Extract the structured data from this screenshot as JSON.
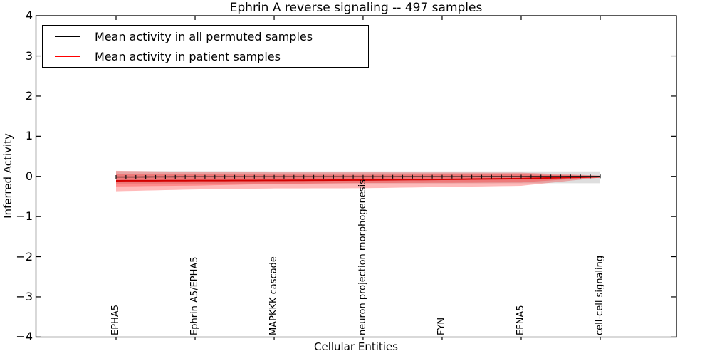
{
  "legend": {
    "items": [
      {
        "label": "Mean activity in all permuted samples",
        "color": "#000000"
      },
      {
        "label": "Mean activity in patient samples",
        "color": "#ff0000"
      }
    ]
  },
  "chart_data": {
    "type": "line",
    "title": "Ephrin A  reverse signaling -- 497 samples",
    "xlabel": "Cellular Entities",
    "ylabel": "Inferred Activity",
    "ylim": [
      -4,
      4
    ],
    "grid": false,
    "legend_position": "upper left",
    "ytick_labels": [
      "4",
      "3",
      "2",
      "1",
      "0",
      "−1",
      "−2",
      "−3",
      "−4"
    ],
    "ytick_values": [
      4,
      3,
      2,
      1,
      0,
      -1,
      -2,
      -3,
      -4
    ],
    "n_points": 50,
    "key_indices": [
      0,
      8,
      16,
      25,
      33,
      41,
      49
    ],
    "x_tick_labels": [
      "EPHA5",
      "Ephrin A5/EPHA5",
      "MAPKKK cascade",
      "neuron projection morphogenesis",
      "FYN",
      "EFNA5",
      "cell-cell signaling"
    ],
    "series": [
      {
        "name": "Mean activity in all permuted samples",
        "color": "#111111",
        "line_width": 1.4,
        "marker": "|",
        "key_values": [
          -0.015,
          -0.01,
          -0.01,
          -0.01,
          -0.008,
          -0.005,
          0.0
        ]
      },
      {
        "name": "Mean activity in patient samples",
        "color": "#d40000",
        "line_width": 2.0,
        "marker": "none",
        "key_values": [
          -0.11,
          -0.105,
          -0.1,
          -0.09,
          -0.075,
          -0.055,
          -0.01
        ]
      }
    ],
    "bands": [
      {
        "name": "permuted-samples-std-band",
        "color": "#000000",
        "opacity": 0.13,
        "key_top": [
          0.13,
          0.13,
          0.125,
          0.125,
          0.125,
          0.125,
          0.125
        ],
        "key_bottom": [
          -0.18,
          -0.18,
          -0.18,
          -0.175,
          -0.175,
          -0.17,
          -0.17
        ]
      },
      {
        "name": "patient-samples-std-outer-band",
        "color": "#ff0000",
        "opacity": 0.27,
        "key_top": [
          0.14,
          0.11,
          0.1,
          0.1,
          0.095,
          0.09,
          0.02
        ],
        "key_bottom": [
          -0.37,
          -0.325,
          -0.3,
          -0.295,
          -0.265,
          -0.235,
          -0.03
        ]
      },
      {
        "name": "patient-samples-std-inner-band",
        "color": "#ff0000",
        "opacity": 0.25,
        "key_top": [
          0.065,
          0.05,
          0.045,
          0.04,
          0.05,
          0.05,
          0.012
        ],
        "key_bottom": [
          -0.25,
          -0.23,
          -0.19,
          -0.165,
          -0.16,
          -0.15,
          -0.02
        ]
      }
    ]
  }
}
